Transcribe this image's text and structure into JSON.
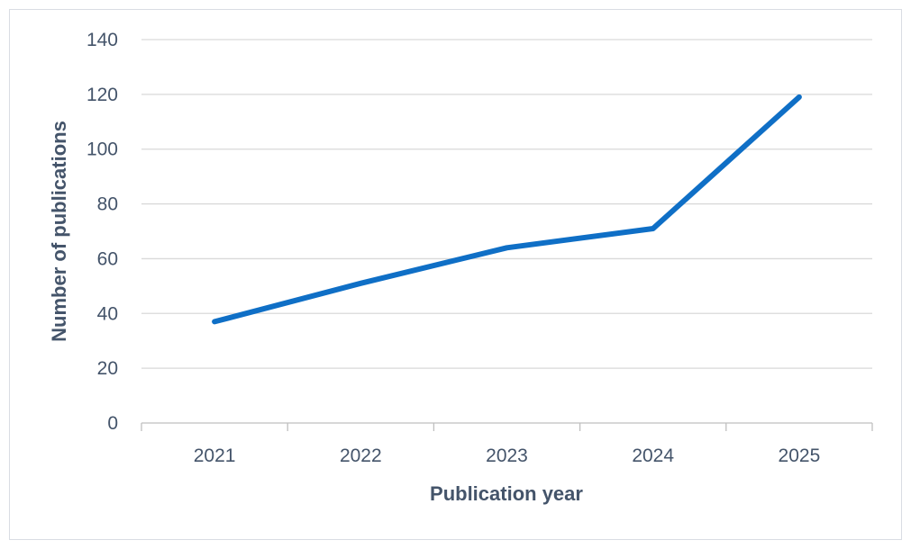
{
  "chart_data": {
    "type": "line",
    "title": "",
    "xlabel": "Publication year",
    "ylabel": "Number of publications",
    "categories": [
      "2021",
      "2022",
      "2023",
      "2024",
      "2025"
    ],
    "series": [
      {
        "values": [
          37,
          51,
          64,
          71,
          119
        ],
        "color": "#0f6fc6"
      }
    ],
    "ylim": [
      0,
      140
    ],
    "yticks": [
      0,
      20,
      40,
      60,
      80,
      100,
      120,
      140
    ],
    "grid": true,
    "legend": "none"
  },
  "colors": {
    "text": "#44546a",
    "grid": "#d9d9d9",
    "axis": "#bfbfbf",
    "series": "#0f6fc6"
  }
}
